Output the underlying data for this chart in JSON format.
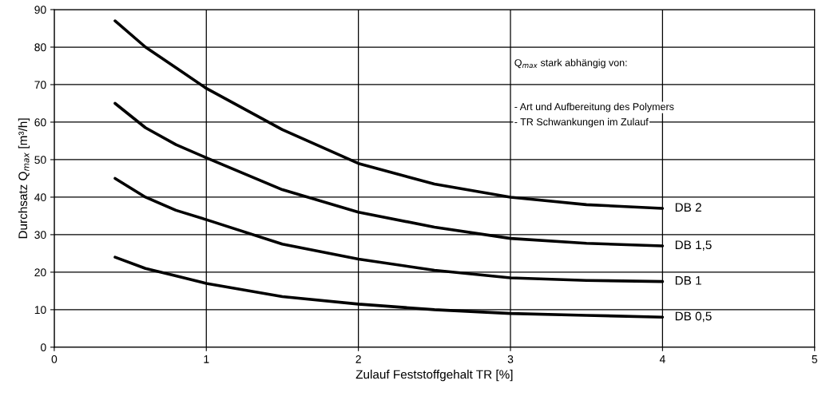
{
  "chart_data": {
    "type": "line",
    "xlabel": "Zulauf Feststoffgehalt TR [%]",
    "ylabel": "Durchsatz Q$_{max}$ [m³/h]",
    "xlim": [
      0,
      5
    ],
    "xticks": [
      0,
      1,
      2,
      3,
      4,
      5
    ],
    "ylim": [
      0,
      90
    ],
    "yticks": [
      0,
      10,
      20,
      30,
      40,
      50,
      60,
      70,
      80,
      90
    ],
    "grid": true,
    "legend": false,
    "marker": "none",
    "line_style": "solid",
    "x": [
      0.4,
      0.6,
      0.8,
      1,
      1.5,
      2,
      2.5,
      3,
      3.5,
      4
    ],
    "series": [
      {
        "name": "DB 2",
        "color": "#000000",
        "values": [
          87,
          80,
          74.5,
          69,
          58,
          49,
          43.5,
          40,
          38,
          37
        ]
      },
      {
        "name": "DB 1,5",
        "color": "#000000",
        "values": [
          65,
          58.5,
          54,
          50.5,
          42,
          36,
          32,
          29,
          27.7,
          27
        ]
      },
      {
        "name": "DB 1",
        "color": "#000000",
        "values": [
          45,
          40,
          36.5,
          34,
          27.5,
          23.5,
          20.5,
          18.5,
          17.8,
          17.5
        ]
      },
      {
        "name": "DB 0,5",
        "color": "#000000",
        "values": [
          24,
          21,
          19,
          17,
          13.5,
          11.5,
          10,
          9,
          8.5,
          8
        ]
      }
    ],
    "annotations": [
      "Q$_{max}$ stark abhängig von:",
      "- Art und Aufbereitung des Polymers",
      "- TR Schwankungen im Zulauf"
    ]
  }
}
